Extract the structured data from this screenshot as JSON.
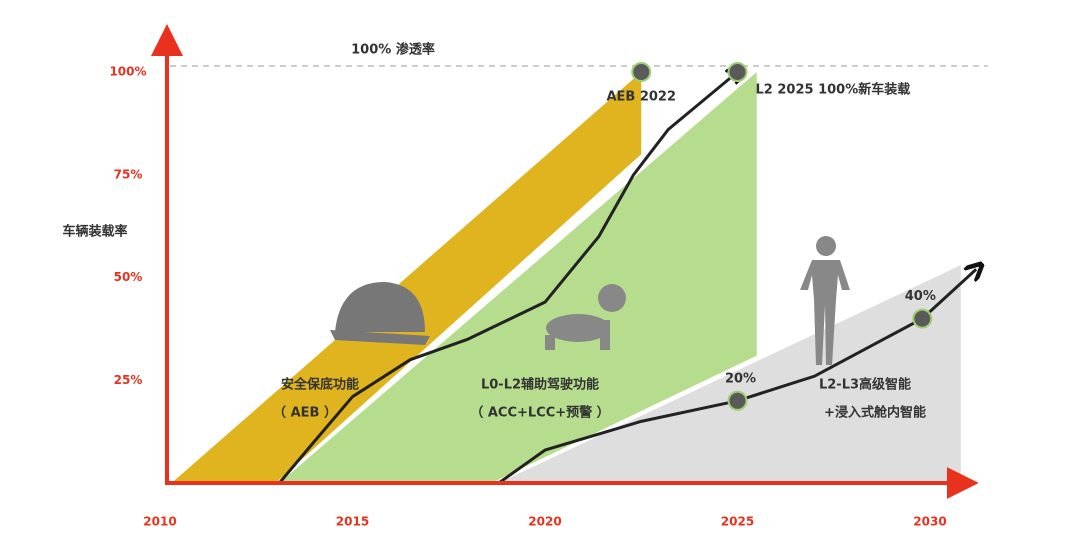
{
  "chart_data": {
    "type": "area",
    "ylabel": "车辆装载率",
    "xlim": [
      2010,
      2031.5
    ],
    "ylim": [
      0,
      100
    ],
    "xticks": [
      2010,
      2015,
      2020,
      2025,
      2030
    ],
    "yticks": [
      {
        "value": 25,
        "label": "25%"
      },
      {
        "value": 50,
        "label": "50%"
      },
      {
        "value": 75,
        "label": "75%"
      },
      {
        "value": 100,
        "label": "100%"
      }
    ],
    "reference_line": {
      "value": 100,
      "label": "100% 渗透率"
    },
    "bands": [
      {
        "label": "安全保底功能",
        "sublabel": "（ AEB ）",
        "color": "#dfb41f",
        "x": [
          2010.3,
          2022.5,
          2022.5,
          2013
        ],
        "y": [
          0,
          100,
          80,
          0
        ]
      },
      {
        "label": "L0-L2辅助驾驶功能",
        "sublabel": "（ ACC+LCC+预警 ）",
        "color": "#b6dd8e",
        "x": [
          2013.1,
          2025.5,
          2025.5,
          2018.6
        ],
        "y": [
          0,
          100,
          31,
          0
        ]
      },
      {
        "label": "L2-L3高级智能",
        "sublabel": "+浸入式舱内智能",
        "color": "#dedede",
        "x": [
          2018.8,
          2030.8,
          2030.8
        ],
        "y": [
          0,
          53,
          0
        ]
      }
    ],
    "curves": [
      {
        "x": [
          2013.1,
          2014,
          2015,
          2016.5,
          2018,
          2020,
          2021.4,
          2022.3,
          2023.2,
          2025
        ],
        "y": [
          0,
          10,
          21,
          30,
          35,
          44,
          60,
          75,
          86,
          100
        ]
      },
      {
        "x": [
          2018.8,
          2020,
          2022.5,
          2025,
          2027,
          2029.8,
          2031.2
        ],
        "y": [
          0,
          8,
          15,
          20,
          26,
          40,
          52
        ]
      }
    ],
    "points": [
      {
        "label": "AEB 2022",
        "x": 2022.5,
        "y": 100
      },
      {
        "label": "L2 2025 100%新车装载",
        "x": 2025,
        "y": 100
      },
      {
        "label": "20%",
        "x": 2025,
        "y": 20
      },
      {
        "label": "40%",
        "x": 2029.8,
        "y": 40
      }
    ]
  }
}
